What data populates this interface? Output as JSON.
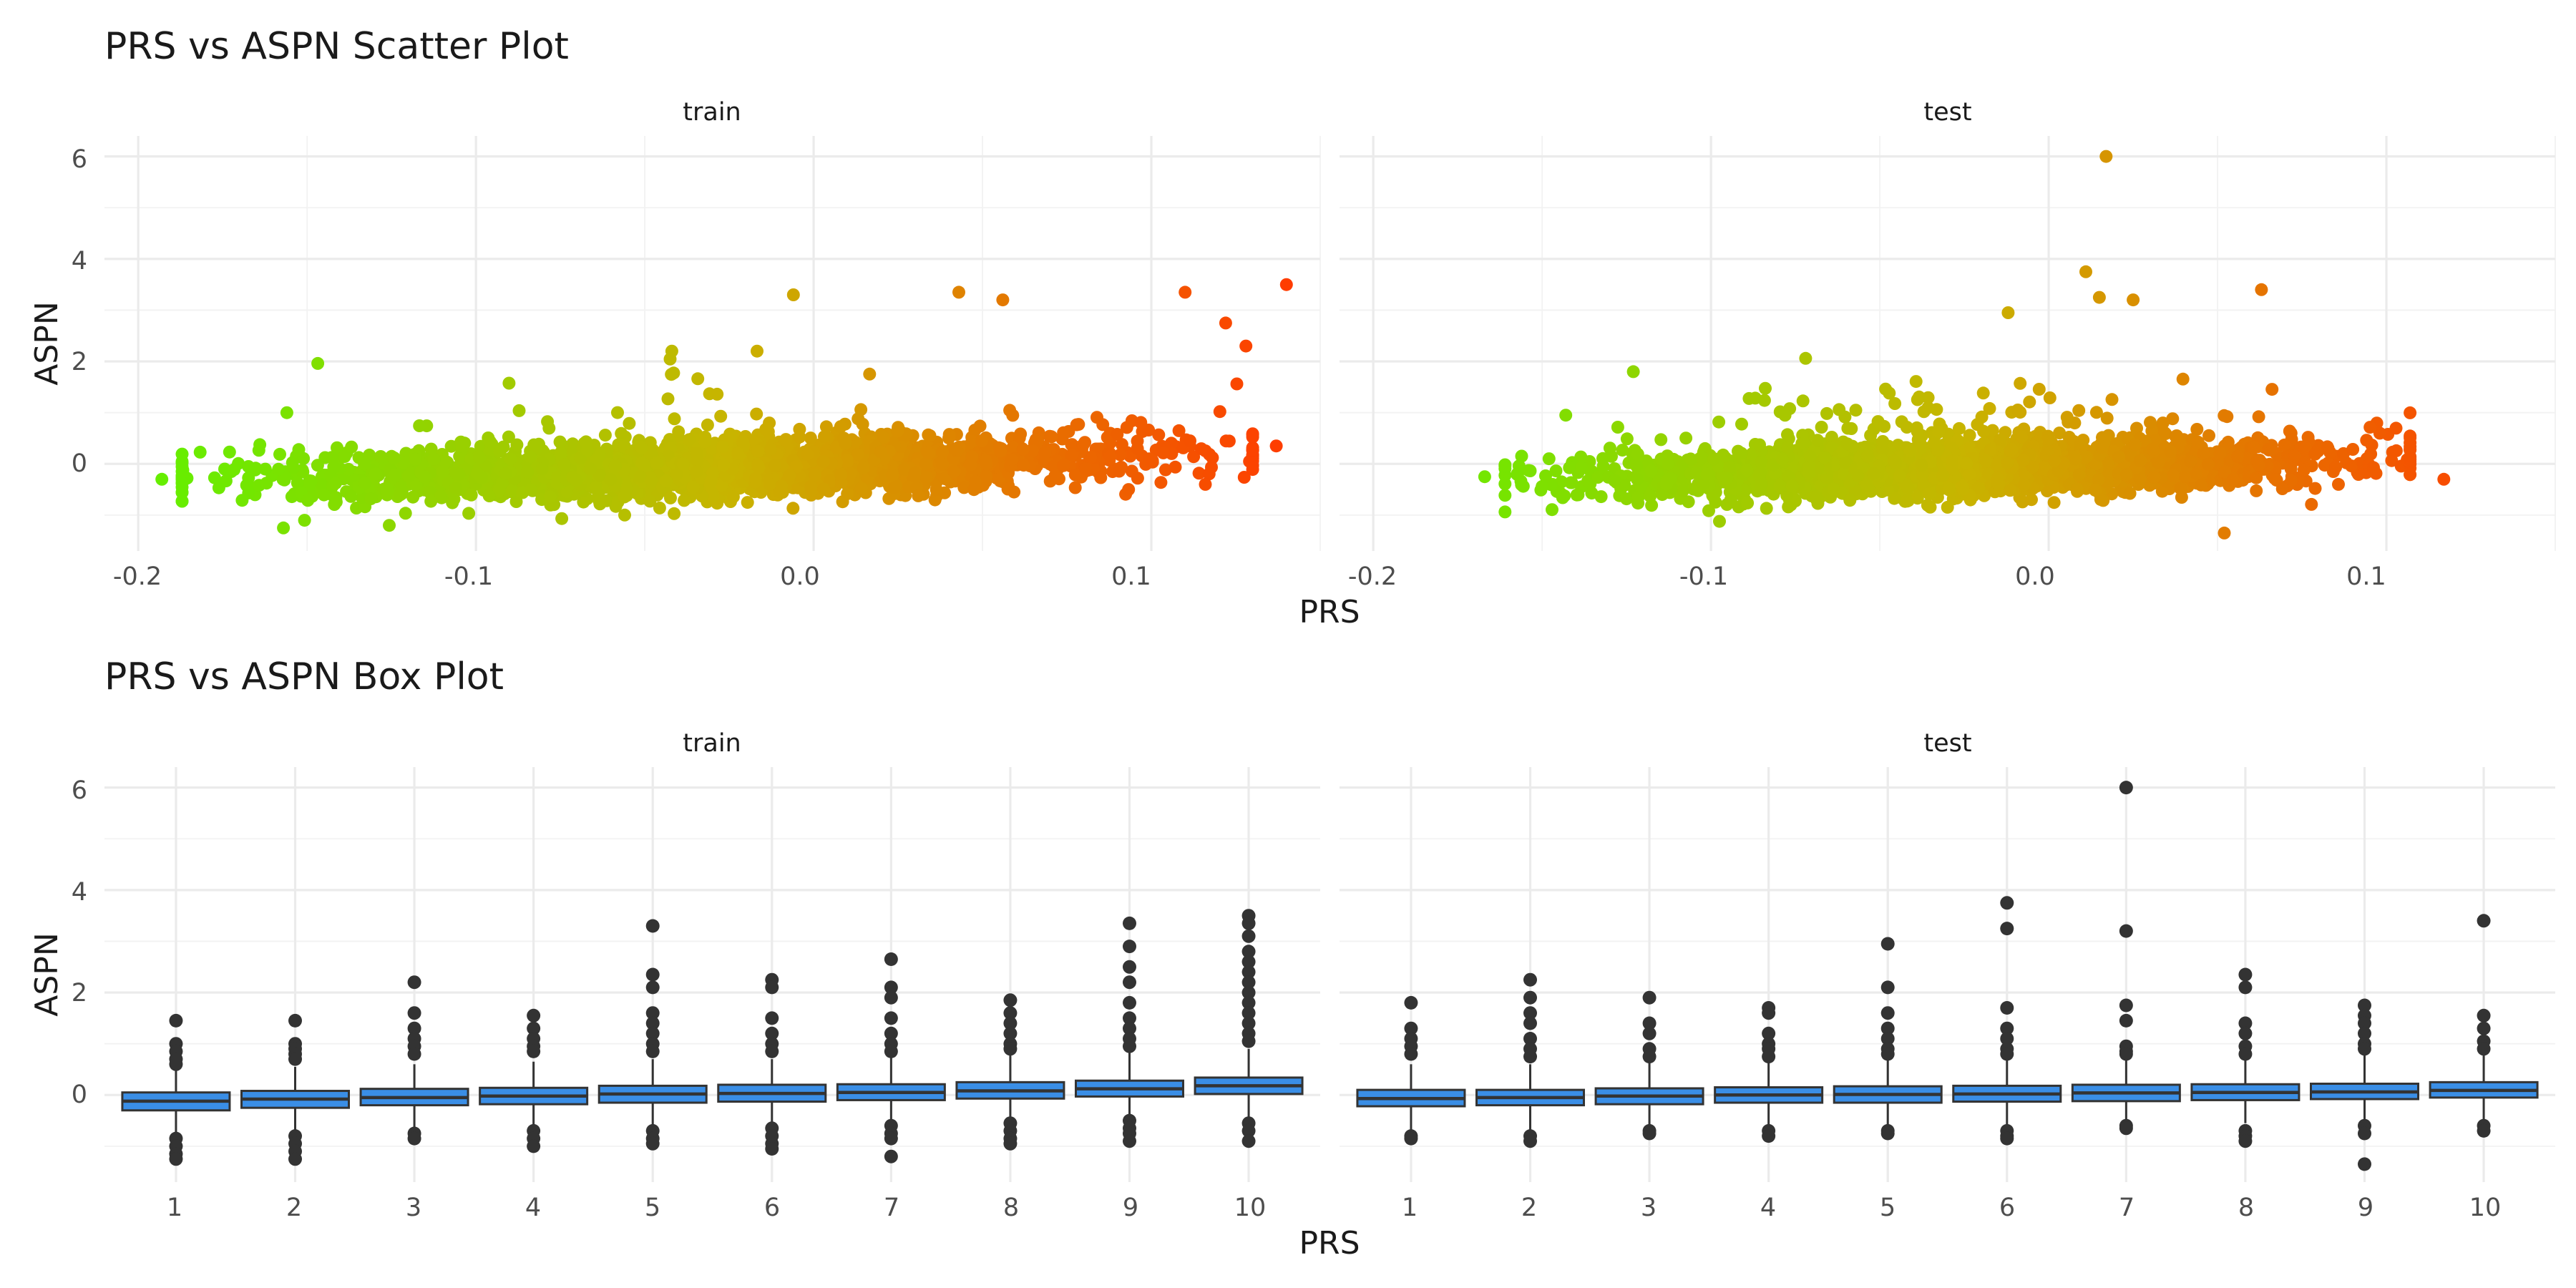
{
  "colors": {
    "scatter_low": "#66ee00",
    "scatter_mid": "#c8b400",
    "scatter_high": "#ff3c00",
    "box_fill": "#3a8ee6",
    "box_stroke": "#333333",
    "outlier": "#333333",
    "grid": "#ebebeb"
  },
  "scatter_plot": {
    "title": "PRS vs ASPN Scatter Plot",
    "xlabel": "PRS",
    "ylabel": "ASPN",
    "x_ticks": [
      "-0.2",
      "-0.1",
      "0.0",
      "0.1"
    ],
    "y_ticks": [
      "0",
      "2",
      "4",
      "6"
    ],
    "panels": [
      {
        "label": "train"
      },
      {
        "label": "test"
      }
    ]
  },
  "box_plot": {
    "title": "PRS vs ASPN Box Plot",
    "xlabel": "PRS",
    "ylabel": "ASPN",
    "x_ticks": [
      "1",
      "2",
      "3",
      "4",
      "5",
      "6",
      "7",
      "8",
      "9",
      "10"
    ],
    "y_ticks": [
      "0",
      "2",
      "4",
      "6"
    ],
    "panels": [
      {
        "label": "train"
      },
      {
        "label": "test"
      }
    ]
  },
  "chart_data": [
    {
      "type": "scatter",
      "title": "PRS vs ASPN Scatter Plot",
      "xlabel": "PRS",
      "ylabel": "ASPN",
      "xlim": [
        -0.21,
        0.15
      ],
      "ylim": [
        -1.7,
        6.4
      ],
      "color_by": "PRS",
      "facets": [
        {
          "name": "train",
          "x_range": [
            -0.193,
            0.14
          ],
          "y_range": [
            -1.3,
            3.5
          ],
          "dense_trend": {
            "x": [
              -0.15,
              -0.1,
              -0.05,
              0.0,
              0.05,
              0.1
            ],
            "y": [
              -0.3,
              -0.2,
              -0.15,
              -0.05,
              0.05,
              0.2
            ]
          },
          "notable_points": [
            {
              "x": -0.193,
              "y": -0.3
            },
            {
              "x": -0.156,
              "y": 1.0
            },
            {
              "x": -0.157,
              "y": -1.25
            },
            {
              "x": -0.042,
              "y": 2.2
            },
            {
              "x": -0.006,
              "y": 3.3
            },
            {
              "x": 0.043,
              "y": 3.35
            },
            {
              "x": 0.056,
              "y": 3.2
            },
            {
              "x": 0.11,
              "y": 3.35
            },
            {
              "x": 0.14,
              "y": 3.5
            },
            {
              "x": 0.122,
              "y": 2.75
            },
            {
              "x": 0.128,
              "y": 2.3
            },
            {
              "x": 0.116,
              "y": -0.4
            },
            {
              "x": 0.137,
              "y": 0.35
            }
          ]
        },
        {
          "name": "test",
          "x_range": [
            -0.167,
            0.117
          ],
          "y_range": [
            -1.35,
            6.0
          ],
          "dense_trend": {
            "x": [
              -0.15,
              -0.1,
              -0.05,
              0.0,
              0.05,
              0.1
            ],
            "y": [
              -0.3,
              -0.2,
              -0.1,
              -0.05,
              0.0,
              0.1
            ]
          },
          "notable_points": [
            {
              "x": 0.017,
              "y": 6.0
            },
            {
              "x": 0.011,
              "y": 3.75
            },
            {
              "x": 0.015,
              "y": 3.25
            },
            {
              "x": 0.025,
              "y": 3.2
            },
            {
              "x": 0.063,
              "y": 3.4
            },
            {
              "x": -0.012,
              "y": 2.95
            },
            {
              "x": -0.123,
              "y": 1.8
            },
            {
              "x": -0.143,
              "y": 0.95
            },
            {
              "x": -0.167,
              "y": -0.25
            },
            {
              "x": 0.117,
              "y": -0.3
            },
            {
              "x": 0.052,
              "y": -1.35
            }
          ]
        }
      ]
    },
    {
      "type": "box",
      "title": "PRS vs ASPN Box Plot",
      "xlabel": "PRS",
      "ylabel": "ASPN",
      "categories": [
        "1",
        "2",
        "3",
        "4",
        "5",
        "6",
        "7",
        "8",
        "9",
        "10"
      ],
      "ylim": [
        -1.7,
        6.4
      ],
      "facets": [
        {
          "name": "train",
          "boxes": [
            {
              "q1": -0.3,
              "median": -0.12,
              "q3": 0.05,
              "whisker_low": -0.75,
              "whisker_high": 0.5,
              "outliers": [
                1.45,
                1.0,
                0.85,
                0.7,
                0.6,
                -0.85,
                -1.0,
                -1.15,
                -1.25
              ]
            },
            {
              "q1": -0.25,
              "median": -0.08,
              "q3": 0.08,
              "whisker_low": -0.7,
              "whisker_high": 0.55,
              "outliers": [
                1.45,
                1.0,
                0.9,
                0.8,
                0.7,
                -0.8,
                -0.95,
                -1.1,
                -1.25
              ]
            },
            {
              "q1": -0.2,
              "median": -0.05,
              "q3": 0.12,
              "whisker_low": -0.65,
              "whisker_high": 0.6,
              "outliers": [
                2.2,
                1.6,
                1.3,
                1.1,
                0.95,
                0.8,
                -0.75,
                -0.85
              ]
            },
            {
              "q1": -0.18,
              "median": -0.02,
              "q3": 0.14,
              "whisker_low": -0.6,
              "whisker_high": 0.65,
              "outliers": [
                1.55,
                1.3,
                1.1,
                0.95,
                0.85,
                -0.7,
                -0.85,
                -1.0
              ]
            },
            {
              "q1": -0.15,
              "median": 0.02,
              "q3": 0.18,
              "whisker_low": -0.6,
              "whisker_high": 0.7,
              "outliers": [
                3.3,
                2.35,
                2.1,
                1.6,
                1.4,
                1.2,
                1.0,
                0.85,
                -0.7,
                -0.85,
                -0.95
              ]
            },
            {
              "q1": -0.13,
              "median": 0.03,
              "q3": 0.2,
              "whisker_low": -0.6,
              "whisker_high": 0.7,
              "outliers": [
                2.25,
                2.1,
                1.5,
                1.2,
                1.0,
                0.85,
                -0.65,
                -0.8,
                -0.95,
                -1.05
              ]
            },
            {
              "q1": -0.1,
              "median": 0.05,
              "q3": 0.21,
              "whisker_low": -0.55,
              "whisker_high": 0.75,
              "outliers": [
                2.65,
                2.1,
                1.9,
                1.5,
                1.2,
                1.0,
                0.85,
                -0.6,
                -0.75,
                -0.85,
                -1.2
              ]
            },
            {
              "q1": -0.07,
              "median": 0.08,
              "q3": 0.25,
              "whisker_low": -0.55,
              "whisker_high": 0.8,
              "outliers": [
                1.85,
                1.6,
                1.4,
                1.2,
                1.0,
                0.9,
                -0.55,
                -0.7,
                -0.85,
                -0.95
              ]
            },
            {
              "q1": -0.03,
              "median": 0.12,
              "q3": 0.28,
              "whisker_low": -0.5,
              "whisker_high": 0.85,
              "outliers": [
                3.35,
                2.9,
                2.5,
                2.2,
                1.8,
                1.5,
                1.3,
                1.1,
                0.95,
                -0.5,
                -0.65,
                -0.75,
                -0.9
              ]
            },
            {
              "q1": 0.02,
              "median": 0.18,
              "q3": 0.34,
              "whisker_low": -0.45,
              "whisker_high": 0.9,
              "outliers": [
                3.5,
                3.35,
                3.1,
                2.8,
                2.6,
                2.4,
                2.2,
                2.0,
                1.8,
                1.6,
                1.4,
                1.2,
                1.05,
                -0.55,
                -0.7,
                -0.9
              ]
            }
          ]
        },
        {
          "name": "test",
          "boxes": [
            {
              "q1": -0.22,
              "median": -0.07,
              "q3": 0.1,
              "whisker_low": -0.7,
              "whisker_high": 0.6,
              "outliers": [
                1.8,
                1.3,
                1.1,
                0.95,
                0.8,
                -0.8,
                -0.85
              ]
            },
            {
              "q1": -0.2,
              "median": -0.05,
              "q3": 0.1,
              "whisker_low": -0.7,
              "whisker_high": 0.6,
              "outliers": [
                2.25,
                1.9,
                1.6,
                1.4,
                1.1,
                0.9,
                0.75,
                -0.8,
                -0.9
              ]
            },
            {
              "q1": -0.18,
              "median": -0.02,
              "q3": 0.13,
              "whisker_low": -0.6,
              "whisker_high": 0.65,
              "outliers": [
                1.9,
                1.4,
                1.2,
                0.9,
                0.75,
                -0.7,
                -0.75
              ]
            },
            {
              "q1": -0.15,
              "median": 0.0,
              "q3": 0.15,
              "whisker_low": -0.6,
              "whisker_high": 0.65,
              "outliers": [
                1.7,
                1.6,
                1.2,
                1.0,
                0.9,
                0.75,
                -0.7,
                -0.8
              ]
            },
            {
              "q1": -0.15,
              "median": 0.01,
              "q3": 0.17,
              "whisker_low": -0.6,
              "whisker_high": 0.7,
              "outliers": [
                2.95,
                2.1,
                1.6,
                1.3,
                1.1,
                0.9,
                0.8,
                -0.7,
                -0.75
              ]
            },
            {
              "q1": -0.13,
              "median": 0.02,
              "q3": 0.18,
              "whisker_low": -0.6,
              "whisker_high": 0.7,
              "outliers": [
                3.75,
                3.25,
                1.7,
                1.3,
                1.1,
                0.9,
                0.8,
                -0.7,
                -0.8,
                -0.85
              ]
            },
            {
              "q1": -0.12,
              "median": 0.04,
              "q3": 0.2,
              "whisker_low": -0.55,
              "whisker_high": 0.75,
              "outliers": [
                6.0,
                3.2,
                1.75,
                1.45,
                0.95,
                0.85,
                0.8,
                -0.6,
                -0.65
              ]
            },
            {
              "q1": -0.1,
              "median": 0.05,
              "q3": 0.21,
              "whisker_low": -0.55,
              "whisker_high": 0.75,
              "outliers": [
                2.35,
                2.1,
                1.4,
                1.2,
                0.95,
                0.8,
                -0.7,
                -0.8,
                -0.9
              ]
            },
            {
              "q1": -0.08,
              "median": 0.06,
              "q3": 0.22,
              "whisker_low": -0.55,
              "whisker_high": 0.8,
              "outliers": [
                1.75,
                1.55,
                1.4,
                1.2,
                1.0,
                0.9,
                -0.6,
                -0.75,
                -1.35
              ]
            },
            {
              "q1": -0.05,
              "median": 0.09,
              "q3": 0.25,
              "whisker_low": -0.5,
              "whisker_high": 0.8,
              "outliers": [
                3.4,
                1.55,
                1.3,
                1.05,
                0.9,
                -0.6,
                -0.7
              ]
            }
          ]
        }
      ]
    }
  ]
}
